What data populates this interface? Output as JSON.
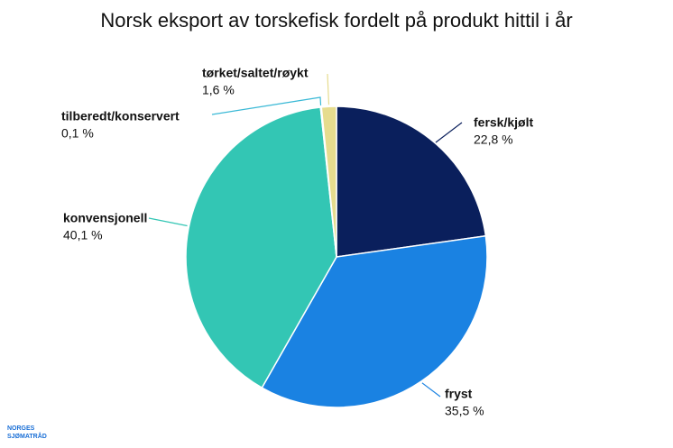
{
  "chart_data": {
    "type": "pie",
    "title": "Norsk eksport av torskefisk fordelt på produkt hittil i år",
    "categories": [
      "fersk/kjølt",
      "fryst",
      "konvensjonell",
      "tilberedt/konservert",
      "tørket/saltet/røykt"
    ],
    "values": [
      22.8,
      35.5,
      40.1,
      0.1,
      1.6
    ],
    "value_labels": [
      "22,8 %",
      "35,5 %",
      "40,1 %",
      "0,1 %",
      "1,6 %"
    ],
    "colors": [
      "#0a1f5c",
      "#1a82e2",
      "#33c6b4",
      "#3ab9d6",
      "#e6dc8e"
    ]
  },
  "logo": [
    "NORGES",
    "SJØMATRÅD"
  ]
}
